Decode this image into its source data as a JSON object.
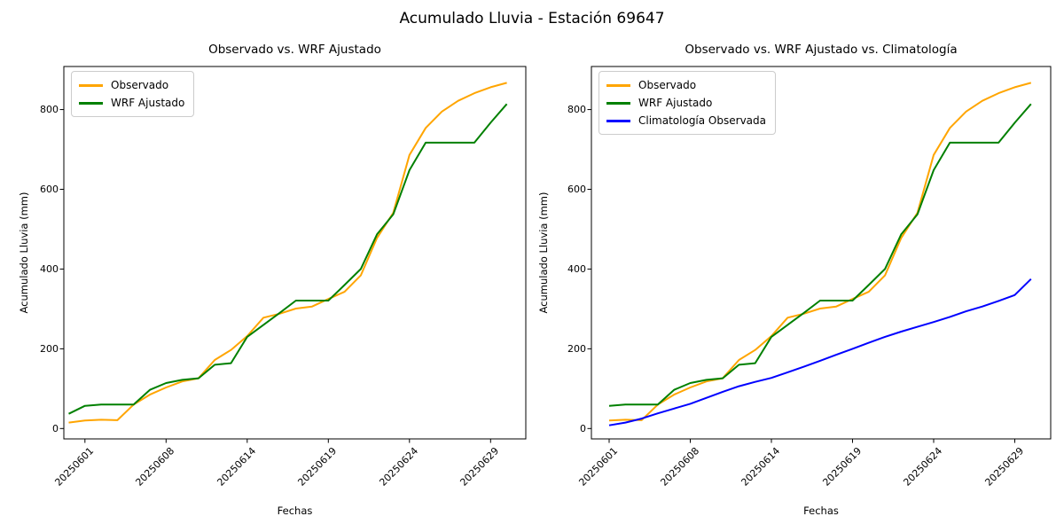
{
  "suptitle": "Acumulado Lluvia - Estación 69647",
  "colors": {
    "observado": "#FFA500",
    "wrf_ajustado": "#008000",
    "climatologia": "#0000FF"
  },
  "chart_data": [
    {
      "type": "line",
      "title": "Observado vs. WRF Ajustado",
      "xlabel": "Fechas",
      "ylabel": "Acumulado Lluvia (mm)",
      "x_tick_labels": [
        "20250601",
        "20250608",
        "20250614",
        "20250619",
        "20250624",
        "20250629"
      ],
      "x_tick_indices": [
        1,
        6,
        11,
        16,
        21,
        26
      ],
      "yticks": [
        0,
        200,
        400,
        600,
        800
      ],
      "ylim": [
        -26,
        908
      ],
      "grid": false,
      "legend_position": "upper left",
      "series": [
        {
          "name": "Observado",
          "color": "#FFA500",
          "values": [
            15,
            20,
            22,
            21,
            60,
            85,
            103,
            118,
            126,
            172,
            197,
            232,
            278,
            288,
            301,
            306,
            325,
            343,
            384,
            478,
            541,
            686,
            754,
            795,
            822,
            841,
            856,
            867
          ]
        },
        {
          "name": "WRF Ajustado",
          "color": "#008000",
          "values": [
            37,
            57,
            60,
            60,
            60,
            97,
            114,
            122,
            126,
            160,
            164,
            230,
            260,
            290,
            321,
            321,
            321,
            360,
            400,
            487,
            537,
            648,
            717,
            717,
            717,
            717,
            767,
            814
          ]
        }
      ]
    },
    {
      "type": "line",
      "title": "Observado vs. WRF Ajustado vs. Climatología",
      "xlabel": "Fechas",
      "ylabel": "Acumulado Lluvia (mm)",
      "x_tick_labels": [
        "20250601",
        "20250608",
        "20250614",
        "20250619",
        "20250624",
        "20250629"
      ],
      "x_tick_indices": [
        0,
        5,
        10,
        15,
        20,
        25
      ],
      "yticks": [
        0,
        200,
        400,
        600,
        800
      ],
      "ylim": [
        -26,
        908
      ],
      "grid": false,
      "legend_position": "upper left",
      "series": [
        {
          "name": "Observado",
          "color": "#FFA500",
          "values": [
            20,
            22,
            21,
            60,
            85,
            103,
            118,
            126,
            172,
            197,
            232,
            278,
            288,
            301,
            306,
            325,
            343,
            384,
            478,
            541,
            686,
            754,
            795,
            822,
            841,
            856,
            867
          ]
        },
        {
          "name": "WRF Ajustado",
          "color": "#008000",
          "values": [
            57,
            60,
            60,
            60,
            97,
            114,
            122,
            126,
            160,
            164,
            230,
            260,
            290,
            321,
            321,
            321,
            360,
            400,
            487,
            537,
            648,
            717,
            717,
            717,
            717,
            767,
            814
          ]
        },
        {
          "name": "Climatología Observada",
          "color": "#0000FF",
          "values": [
            8,
            15,
            25,
            38,
            50,
            62,
            77,
            92,
            106,
            117,
            127,
            141,
            155,
            170,
            185,
            200,
            215,
            230,
            243,
            255,
            267,
            280,
            294,
            306,
            320,
            335,
            375
          ]
        }
      ]
    }
  ]
}
